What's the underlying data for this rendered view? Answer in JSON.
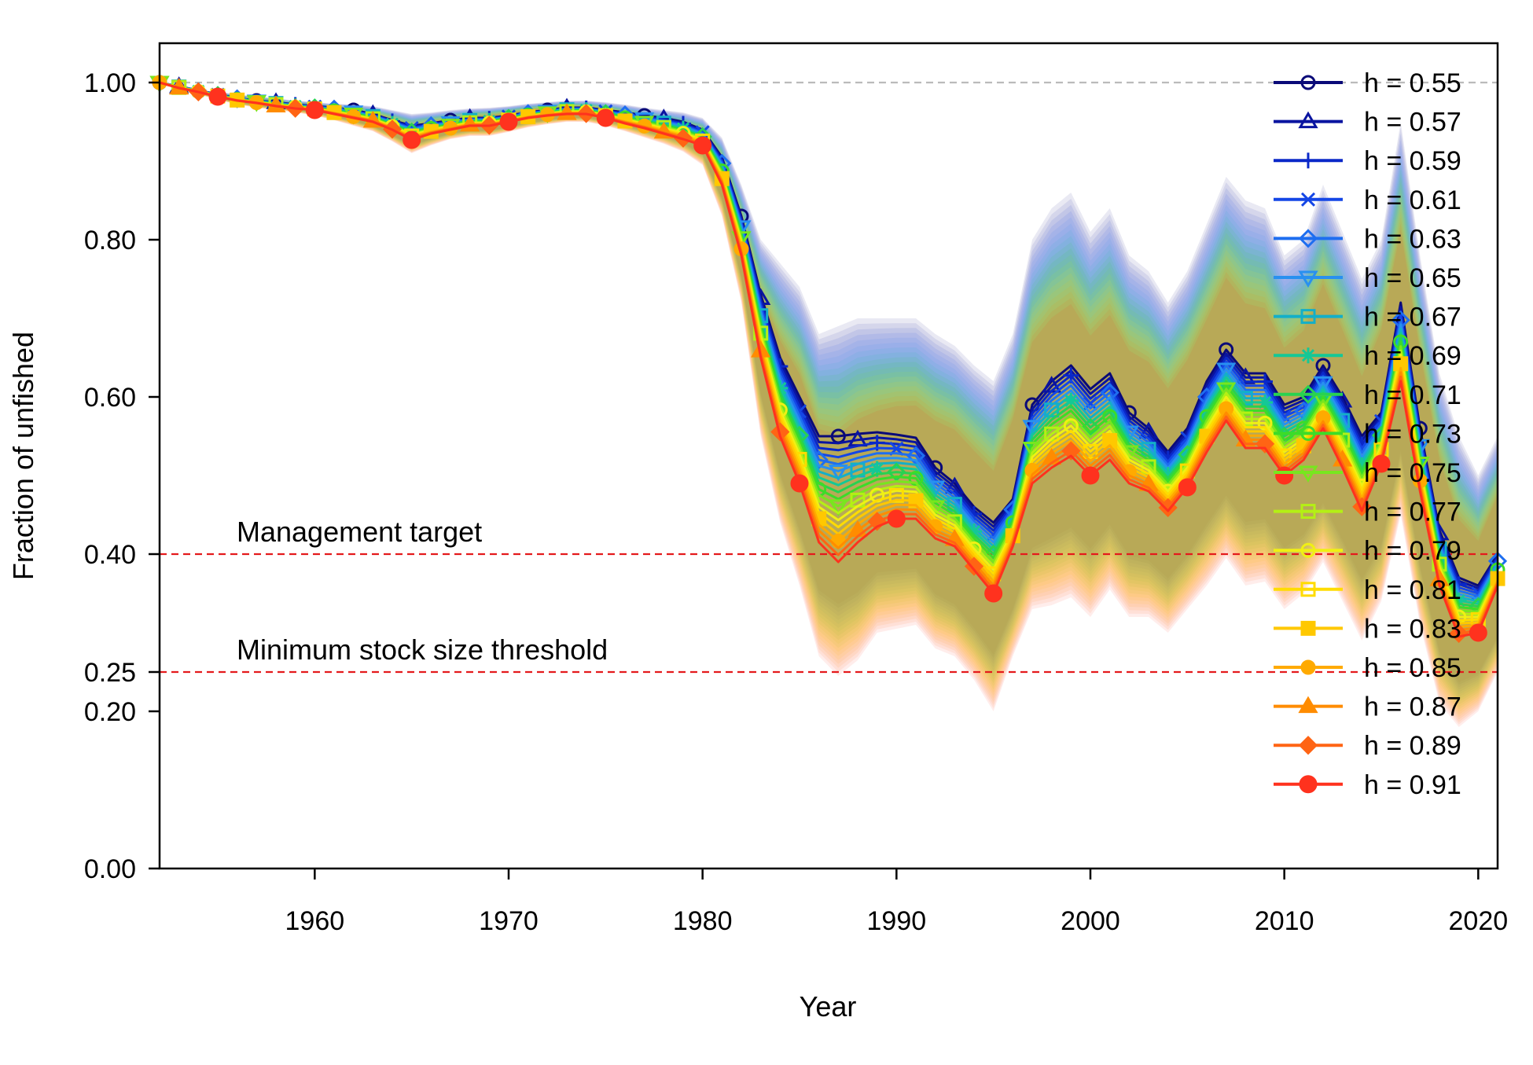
{
  "chart_data": {
    "type": "line",
    "xlabel": "Year",
    "ylabel": "Fraction of unfished",
    "xlim": [
      1952,
      2021
    ],
    "ylim": [
      0,
      1.05
    ],
    "xticks": [
      1960,
      1970,
      1980,
      1990,
      2000,
      2010,
      2020
    ],
    "xtick_labels": [
      "1960",
      "1970",
      "1980",
      "1990",
      "2000",
      "2010",
      "2020"
    ],
    "yticks": [
      0,
      0.2,
      0.25,
      0.4,
      0.6,
      0.8,
      1.0
    ],
    "ytick_labels": [
      "0.00",
      "0.20",
      "0.25",
      "0.40",
      "0.60",
      "0.80",
      "1.00"
    ],
    "grid": false,
    "legend_position": "top-right",
    "reference_lines": [
      {
        "y": 1.0,
        "style": "dashed",
        "color": "#bbbbbb"
      },
      {
        "y": 0.4,
        "style": "dashed",
        "color": "#e41a1c",
        "label": "Management target"
      },
      {
        "y": 0.25,
        "style": "dashed",
        "color": "#e41a1c",
        "label": "Minimum stock size threshold"
      }
    ],
    "x": [
      1952,
      1953,
      1954,
      1955,
      1956,
      1957,
      1958,
      1959,
      1960,
      1961,
      1962,
      1963,
      1964,
      1965,
      1966,
      1967,
      1968,
      1969,
      1970,
      1971,
      1972,
      1973,
      1974,
      1975,
      1976,
      1977,
      1978,
      1979,
      1980,
      1981,
      1982,
      1983,
      1984,
      1985,
      1986,
      1987,
      1988,
      1989,
      1990,
      1991,
      1992,
      1993,
      1994,
      1995,
      1996,
      1997,
      1998,
      1999,
      2000,
      2001,
      2002,
      2003,
      2004,
      2005,
      2006,
      2007,
      2008,
      2009,
      2010,
      2011,
      2012,
      2013,
      2014,
      2015,
      2016,
      2017,
      2018,
      2019,
      2020,
      2021
    ],
    "series_low": {
      "name": "h = 0.55",
      "values": [
        1.0,
        0.995,
        0.99,
        0.985,
        0.98,
        0.977,
        0.975,
        0.972,
        0.97,
        0.968,
        0.965,
        0.96,
        0.952,
        0.945,
        0.948,
        0.952,
        0.955,
        0.955,
        0.958,
        0.962,
        0.965,
        0.968,
        0.968,
        0.965,
        0.962,
        0.958,
        0.955,
        0.95,
        0.94,
        0.905,
        0.83,
        0.73,
        0.65,
        0.6,
        0.55,
        0.55,
        0.553,
        0.555,
        0.552,
        0.548,
        0.51,
        0.49,
        0.46,
        0.44,
        0.47,
        0.59,
        0.62,
        0.64,
        0.61,
        0.63,
        0.58,
        0.56,
        0.53,
        0.56,
        0.62,
        0.66,
        0.63,
        0.63,
        0.59,
        0.6,
        0.64,
        0.6,
        0.55,
        0.58,
        0.72,
        0.56,
        0.43,
        0.37,
        0.36,
        0.4
      ]
    },
    "series_high": {
      "name": "h = 0.91",
      "values": [
        1.0,
        0.993,
        0.988,
        0.982,
        0.977,
        0.974,
        0.97,
        0.967,
        0.965,
        0.96,
        0.955,
        0.95,
        0.94,
        0.927,
        0.935,
        0.94,
        0.945,
        0.945,
        0.95,
        0.955,
        0.958,
        0.96,
        0.96,
        0.955,
        0.948,
        0.942,
        0.935,
        0.928,
        0.92,
        0.87,
        0.78,
        0.65,
        0.55,
        0.49,
        0.415,
        0.39,
        0.415,
        0.435,
        0.445,
        0.445,
        0.42,
        0.41,
        0.38,
        0.35,
        0.41,
        0.49,
        0.51,
        0.525,
        0.5,
        0.52,
        0.49,
        0.48,
        0.455,
        0.485,
        0.53,
        0.57,
        0.535,
        0.535,
        0.5,
        0.52,
        0.56,
        0.51,
        0.455,
        0.515,
        0.62,
        0.48,
        0.36,
        0.295,
        0.3,
        0.36
      ]
    },
    "series": [
      {
        "name": "h = 0.55",
        "color": "#0a0a78",
        "marker": "circle-open"
      },
      {
        "name": "h = 0.57",
        "color": "#0a14a0",
        "marker": "triangle-open"
      },
      {
        "name": "h = 0.59",
        "color": "#0a28c8",
        "marker": "plus"
      },
      {
        "name": "h = 0.61",
        "color": "#1446e6",
        "marker": "x"
      },
      {
        "name": "h = 0.63",
        "color": "#1e6ef0",
        "marker": "diamond-open"
      },
      {
        "name": "h = 0.65",
        "color": "#2890f0",
        "marker": "triangle-down-open"
      },
      {
        "name": "h = 0.67",
        "color": "#14afc8",
        "marker": "square-x"
      },
      {
        "name": "h = 0.69",
        "color": "#14c896",
        "marker": "asterisk"
      },
      {
        "name": "h = 0.71",
        "color": "#28d250",
        "marker": "diamond-plus"
      },
      {
        "name": "h = 0.73",
        "color": "#3cdc28",
        "marker": "circle-plus"
      },
      {
        "name": "h = 0.75",
        "color": "#78e61e",
        "marker": "triangle-updown"
      },
      {
        "name": "h = 0.77",
        "color": "#b4f014",
        "marker": "square-plus"
      },
      {
        "name": "h = 0.79",
        "color": "#f0f014",
        "marker": "circle-x"
      },
      {
        "name": "h = 0.81",
        "color": "#ffdc00",
        "marker": "square-open"
      },
      {
        "name": "h = 0.83",
        "color": "#ffc800",
        "marker": "square"
      },
      {
        "name": "h = 0.85",
        "color": "#ffaa00",
        "marker": "circle"
      },
      {
        "name": "h = 0.87",
        "color": "#ff8c00",
        "marker": "triangle"
      },
      {
        "name": "h = 0.89",
        "color": "#ff6414",
        "marker": "diamond"
      },
      {
        "name": "h = 0.91",
        "color": "#ff321e",
        "marker": "circle-big"
      }
    ],
    "ci_band": {
      "upper_h055": [
        1.0,
        0.995,
        0.99,
        0.988,
        0.985,
        0.982,
        0.98,
        0.977,
        0.975,
        0.973,
        0.972,
        0.97,
        0.965,
        0.96,
        0.962,
        0.965,
        0.967,
        0.968,
        0.97,
        0.973,
        0.975,
        0.977,
        0.977,
        0.975,
        0.972,
        0.968,
        0.965,
        0.962,
        0.955,
        0.93,
        0.87,
        0.8,
        0.77,
        0.74,
        0.68,
        0.69,
        0.7,
        0.7,
        0.7,
        0.7,
        0.68,
        0.665,
        0.64,
        0.62,
        0.68,
        0.8,
        0.84,
        0.86,
        0.81,
        0.84,
        0.78,
        0.76,
        0.72,
        0.76,
        0.82,
        0.88,
        0.85,
        0.84,
        0.78,
        0.8,
        0.87,
        0.81,
        0.75,
        0.8,
        0.95,
        0.78,
        0.63,
        0.55,
        0.5,
        0.55
      ],
      "lower_h091": [
        1.0,
        0.99,
        0.985,
        0.978,
        0.972,
        0.968,
        0.965,
        0.962,
        0.958,
        0.952,
        0.945,
        0.938,
        0.925,
        0.91,
        0.92,
        0.928,
        0.932,
        0.932,
        0.937,
        0.943,
        0.947,
        0.95,
        0.95,
        0.945,
        0.938,
        0.93,
        0.922,
        0.912,
        0.895,
        0.83,
        0.72,
        0.55,
        0.44,
        0.36,
        0.27,
        0.245,
        0.265,
        0.3,
        0.305,
        0.31,
        0.28,
        0.27,
        0.24,
        0.2,
        0.27,
        0.33,
        0.335,
        0.345,
        0.32,
        0.355,
        0.32,
        0.32,
        0.3,
        0.33,
        0.36,
        0.395,
        0.36,
        0.365,
        0.33,
        0.35,
        0.39,
        0.34,
        0.29,
        0.34,
        0.45,
        0.31,
        0.21,
        0.18,
        0.2,
        0.25
      ]
    }
  }
}
